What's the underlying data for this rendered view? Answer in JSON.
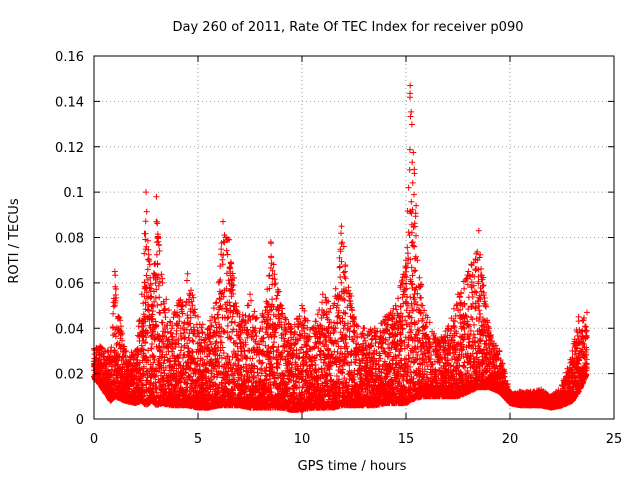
{
  "chart_data": {
    "type": "scatter",
    "title": "Day 260 of 2011, Rate Of TEC Index for receiver p090",
    "xlabel": "GPS time / hours",
    "ylabel": "ROTI / TECUs",
    "xlim": [
      0,
      25
    ],
    "ylim": [
      0,
      0.16
    ],
    "x_ticks": [
      0,
      5,
      10,
      15,
      20,
      25
    ],
    "x_tick_labels": [
      "0",
      "5",
      "10",
      "15",
      "20",
      "25"
    ],
    "y_ticks": [
      0,
      0.02,
      0.04,
      0.06,
      0.08,
      0.1,
      0.12,
      0.14,
      0.16
    ],
    "y_tick_labels": [
      "0",
      "0.02",
      "0.04",
      "0.06",
      "0.08",
      "0.1",
      "0.12",
      "0.14",
      "0.16"
    ],
    "grid": true,
    "marker": "plus",
    "color": "#ff0000",
    "series": [
      {
        "description": "envelope (upper/lower extent) of the ROTI point cloud by hour",
        "x": [
          0.0,
          0.3,
          0.8,
          1.0,
          1.5,
          2.0,
          2.3,
          2.5,
          2.8,
          3.0,
          3.3,
          3.6,
          4.0,
          4.5,
          5.0,
          5.5,
          6.0,
          6.2,
          6.5,
          7.0,
          7.5,
          8.0,
          8.5,
          9.0,
          9.5,
          10.0,
          10.5,
          11.0,
          11.5,
          11.9,
          12.5,
          13.0,
          13.5,
          14.0,
          14.5,
          15.0,
          15.2,
          15.4,
          15.8,
          16.5,
          17.0,
          17.5,
          18.0,
          18.5,
          19.0,
          19.5,
          20.0,
          20.5,
          21.0,
          21.5,
          22.0,
          22.5,
          23.0,
          23.3,
          23.7
        ],
        "ymax": [
          0.031,
          0.032,
          0.03,
          0.065,
          0.03,
          0.03,
          0.055,
          0.1,
          0.05,
          0.098,
          0.06,
          0.048,
          0.05,
          0.064,
          0.045,
          0.04,
          0.06,
          0.087,
          0.079,
          0.045,
          0.055,
          0.04,
          0.078,
          0.05,
          0.04,
          0.05,
          0.04,
          0.055,
          0.05,
          0.085,
          0.045,
          0.04,
          0.04,
          0.045,
          0.05,
          0.07,
          0.147,
          0.11,
          0.05,
          0.035,
          0.04,
          0.055,
          0.065,
          0.083,
          0.04,
          0.03,
          0.012,
          0.012,
          0.012,
          0.013,
          0.01,
          0.015,
          0.03,
          0.045,
          0.047
        ],
        "ymin": [
          0.018,
          0.015,
          0.008,
          0.01,
          0.008,
          0.007,
          0.008,
          0.006,
          0.008,
          0.006,
          0.007,
          0.006,
          0.006,
          0.006,
          0.005,
          0.005,
          0.006,
          0.006,
          0.006,
          0.006,
          0.005,
          0.005,
          0.005,
          0.005,
          0.004,
          0.004,
          0.005,
          0.005,
          0.005,
          0.006,
          0.006,
          0.006,
          0.006,
          0.007,
          0.007,
          0.007,
          0.008,
          0.009,
          0.01,
          0.01,
          0.01,
          0.01,
          0.012,
          0.014,
          0.014,
          0.012,
          0.007,
          0.006,
          0.006,
          0.006,
          0.005,
          0.006,
          0.008,
          0.012,
          0.02
        ]
      }
    ]
  }
}
